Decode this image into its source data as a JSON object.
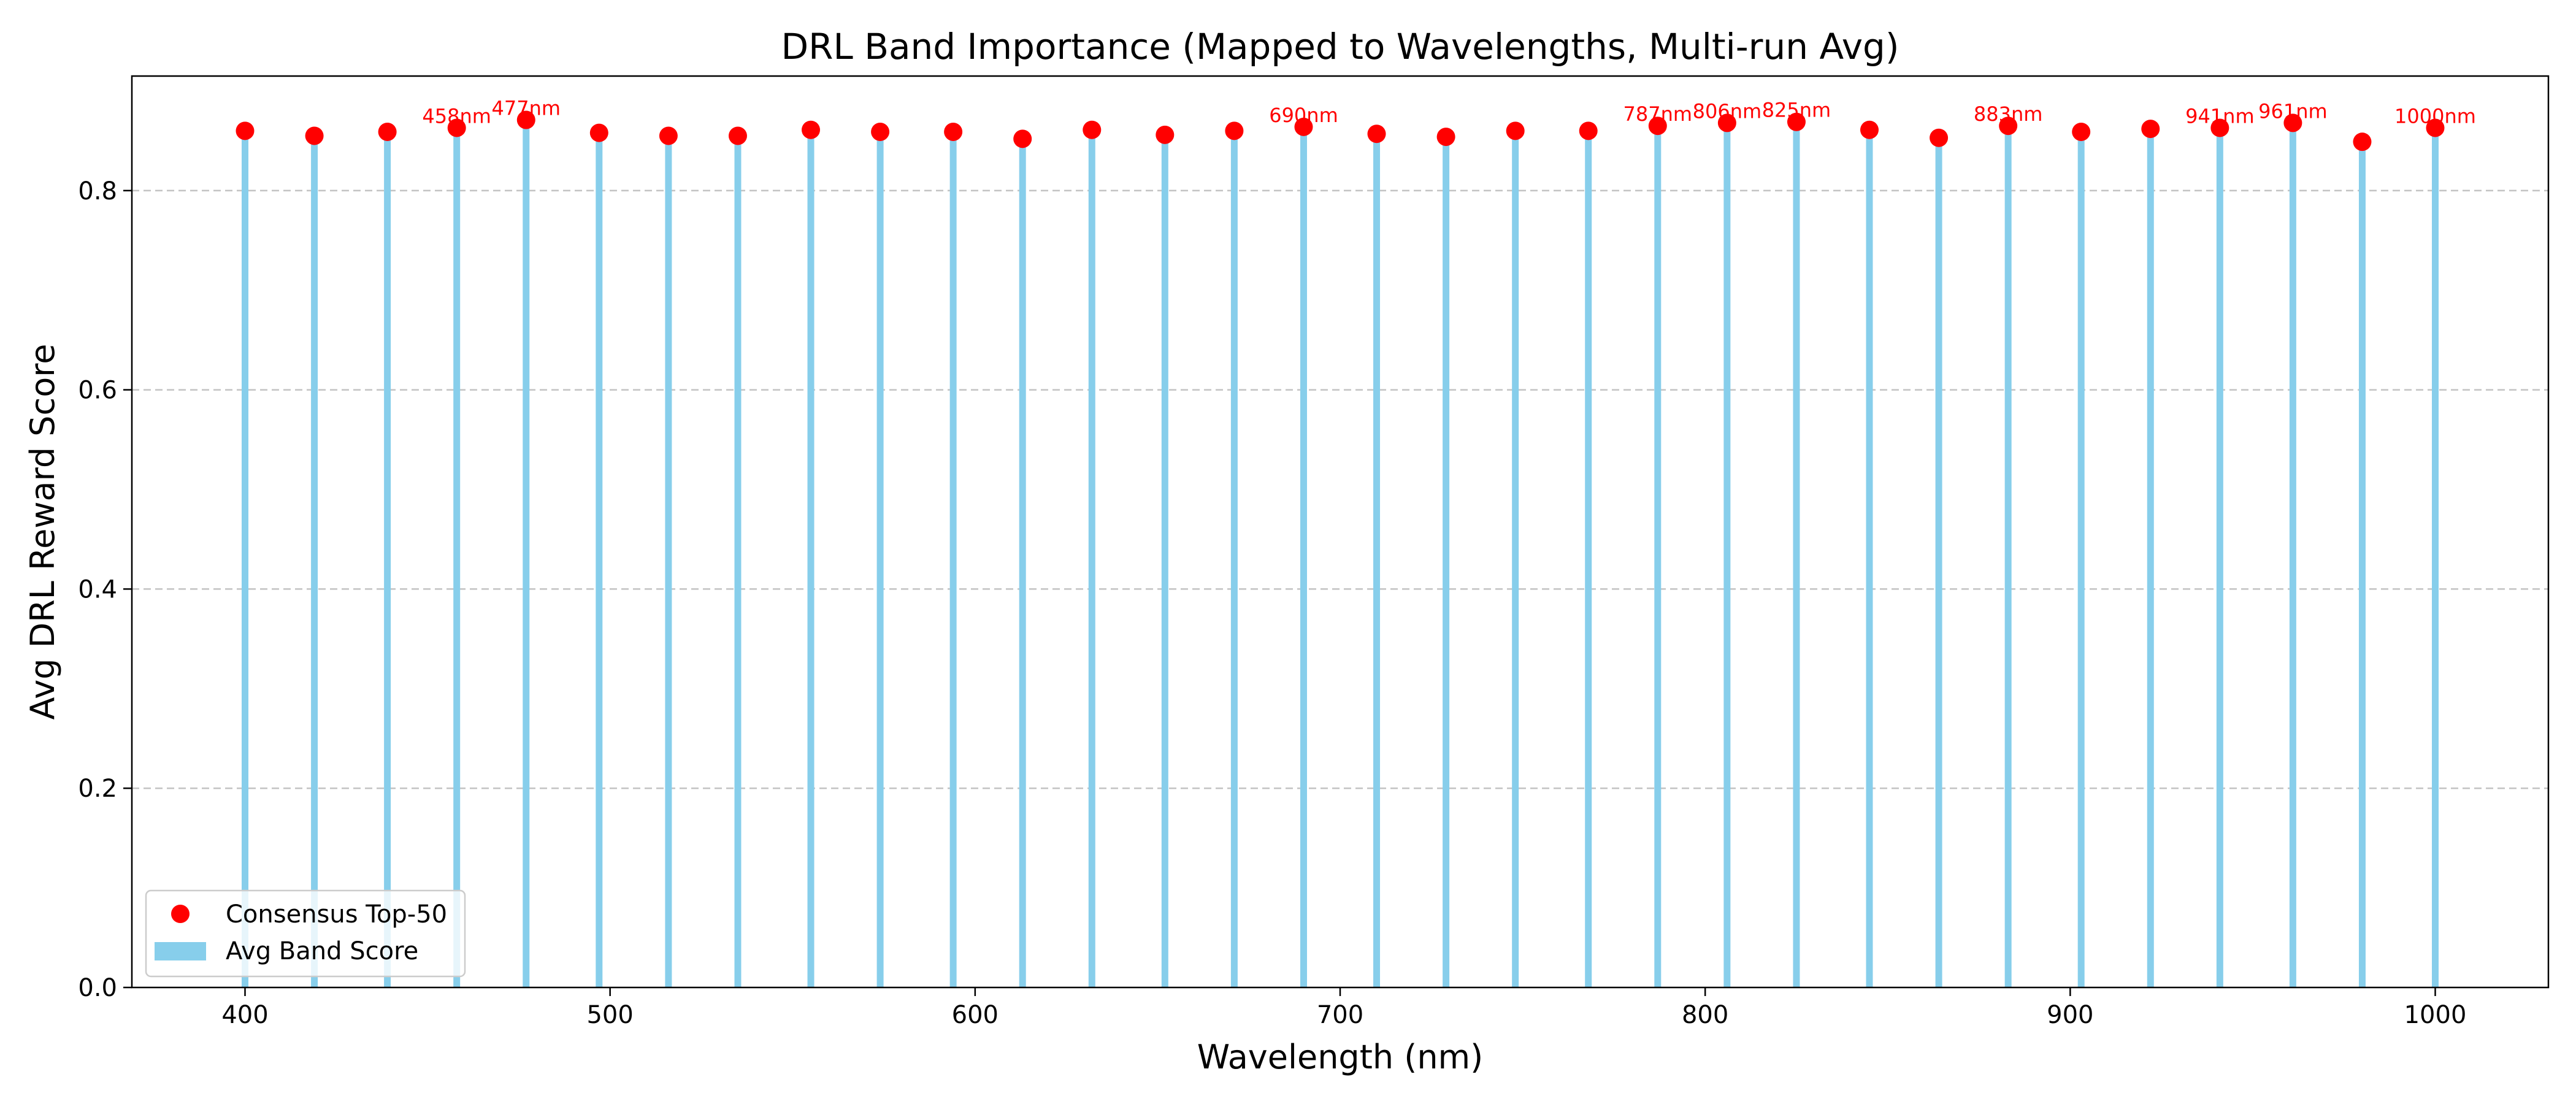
{
  "chart_data": {
    "type": "bar",
    "title": "DRL Band Importance (Mapped to Wavelengths, Multi-run Avg)",
    "xlabel": "Wavelength (nm)",
    "ylabel": "Avg DRL Reward Score",
    "xlim": [
      369,
      1031
    ],
    "ylim": [
      0,
      0.915
    ],
    "x_ticks": [
      400,
      500,
      600,
      700,
      800,
      900,
      1000
    ],
    "y_ticks": [
      0.0,
      0.2,
      0.4,
      0.6,
      0.8
    ],
    "grid": "y-dashed",
    "legend_position": "lower-left",
    "colors": {
      "bars": "#87ceeb",
      "points": "#ff0000",
      "grid": "#b0b0b0"
    },
    "series": [
      {
        "name": "Avg Band Score",
        "kind": "bar"
      },
      {
        "name": "Consensus Top-50",
        "kind": "scatter"
      }
    ],
    "x": [
      400,
      419,
      439,
      458,
      477,
      497,
      516,
      535,
      555,
      574,
      594,
      613,
      632,
      652,
      671,
      690,
      710,
      729,
      748,
      768,
      787,
      806,
      825,
      845,
      864,
      883,
      903,
      922,
      941,
      961,
      980,
      1000
    ],
    "values": [
      0.86,
      0.855,
      0.859,
      0.863,
      0.871,
      0.858,
      0.855,
      0.855,
      0.861,
      0.859,
      0.859,
      0.852,
      0.861,
      0.856,
      0.86,
      0.864,
      0.857,
      0.854,
      0.86,
      0.86,
      0.865,
      0.868,
      0.869,
      0.861,
      0.853,
      0.865,
      0.859,
      0.862,
      0.863,
      0.868,
      0.849,
      0.863
    ],
    "annotations": [
      {
        "x": 458,
        "label": "458nm"
      },
      {
        "x": 477,
        "label": "477nm"
      },
      {
        "x": 690,
        "label": "690nm"
      },
      {
        "x": 787,
        "label": "787nm"
      },
      {
        "x": 806,
        "label": "806nm"
      },
      {
        "x": 825,
        "label": "825nm"
      },
      {
        "x": 883,
        "label": "883nm"
      },
      {
        "x": 941,
        "label": "941nm"
      },
      {
        "x": 961,
        "label": "961nm"
      },
      {
        "x": 1000,
        "label": "1000nm"
      }
    ]
  }
}
